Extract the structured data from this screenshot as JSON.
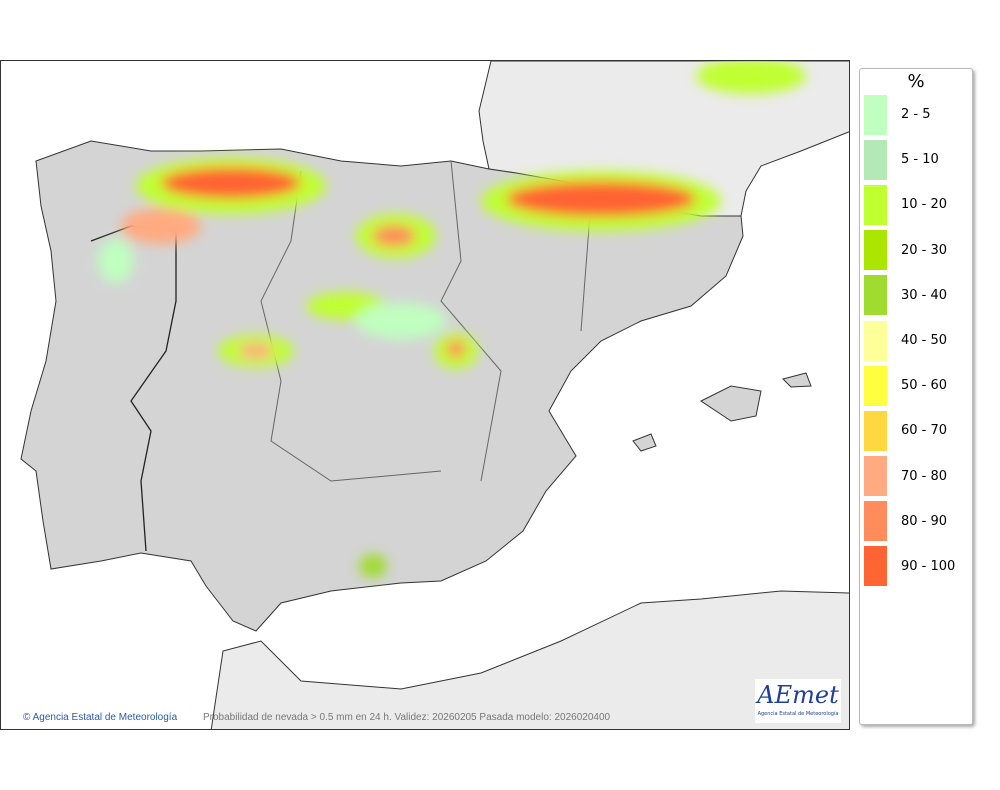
{
  "map": {
    "credit": "Agencia Estatal de Meteorología",
    "caption": "Probabilidad de nevada > 0.5 mm en 24 h. Validez: 20260205 Pasada modelo: 2026020400",
    "logo_text": "AEmet",
    "logo_subtext": "Agencia Estatal de Meteorología",
    "copyright_icon": "copyright-icon"
  },
  "legend": {
    "title": "%",
    "items": [
      {
        "label": "2 - 5",
        "color": "#c0ffc0"
      },
      {
        "label": "5 - 10",
        "color": "#b4e8b4"
      },
      {
        "label": "10 - 20",
        "color": "#c0ff30"
      },
      {
        "label": "20 - 30",
        "color": "#aae600"
      },
      {
        "label": "30 - 40",
        "color": "#a0dc30"
      },
      {
        "label": "40 - 50",
        "color": "#ffff99"
      },
      {
        "label": "50 - 60",
        "color": "#ffff40"
      },
      {
        "label": "60 - 70",
        "color": "#ffd740"
      },
      {
        "label": "70 - 80",
        "color": "#ffaa80"
      },
      {
        "label": "80 - 90",
        "color": "#ff8c5a"
      },
      {
        "label": "90 - 100",
        "color": "#ff6432"
      }
    ]
  }
}
